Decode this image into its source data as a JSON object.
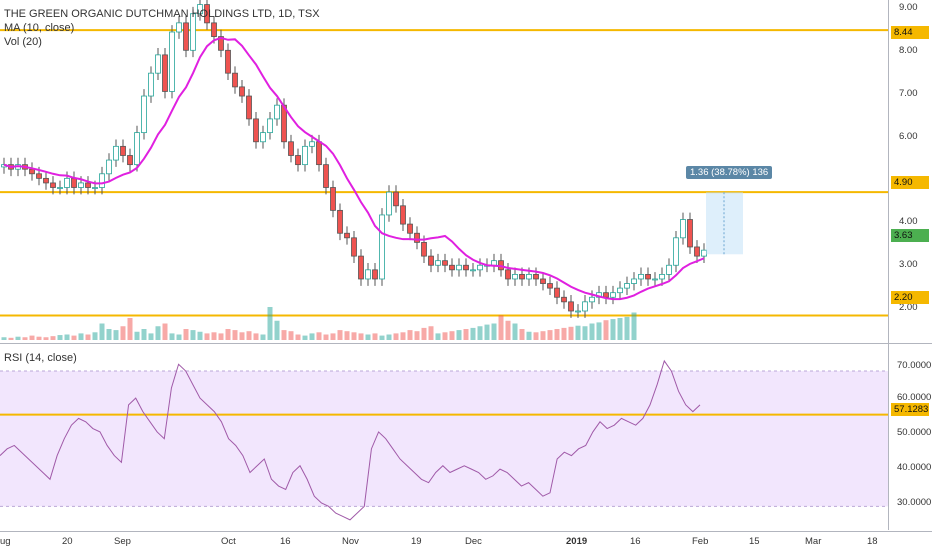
{
  "price_pane": {
    "legend": {
      "symbol": "THE GREEN ORGANIC DUTCHMAN HOLDINGS LTD, 1D, TSX",
      "ma": "MA (10, close)",
      "vol": "Vol (20)"
    },
    "scale_ticks": [
      "9.00",
      "8.00",
      "7.00",
      "6.00",
      "4.00",
      "3.00",
      "2.00"
    ],
    "levels": [
      {
        "value": "8.44",
        "color": "#f5b800"
      },
      {
        "value": "4.90",
        "color": "#f5b800"
      },
      {
        "value": "2.20",
        "color": "#f5b800"
      }
    ],
    "last_price": {
      "value": "3.63",
      "color": "#4caf50"
    },
    "measure_label": "1.36 (38.78%) 136"
  },
  "rsi_pane": {
    "legend": "RSI (14, close)",
    "scale_ticks": [
      "70.0000",
      "60.0000",
      "50.0000",
      "40.0000",
      "30.0000"
    ],
    "level": {
      "value": "57.1283",
      "color": "#f5b800"
    }
  },
  "time_axis": {
    "labels": [
      "ug",
      "20",
      "Sep",
      "Oct",
      "16",
      "Nov",
      "19",
      "Dec",
      "2019",
      "16",
      "Feb",
      "15",
      "Mar",
      "18"
    ]
  },
  "colors": {
    "up": "#26a69a",
    "down": "#ef5350",
    "ma": "#e020e0",
    "rsi_band": "#eddcfc",
    "level": "#f5b800"
  },
  "chart_data": {
    "type": "candlestick",
    "title": "THE GREEN ORGANIC DUTCHMAN HOLDINGS LTD, 1D, TSX",
    "ylim": [
      1.6,
      9.1
    ],
    "closes": [
      5.5,
      5.4,
      5.5,
      5.4,
      5.3,
      5.2,
      5.1,
      5.0,
      5.0,
      5.2,
      5.0,
      5.1,
      5.0,
      5.0,
      5.3,
      5.6,
      5.9,
      5.7,
      5.5,
      6.2,
      7.0,
      7.5,
      7.9,
      7.1,
      8.4,
      8.6,
      8.0,
      8.8,
      9.0,
      8.6,
      8.3,
      8.0,
      7.5,
      7.2,
      7.0,
      6.5,
      6.0,
      6.2,
      6.5,
      6.8,
      6.0,
      5.7,
      5.5,
      5.9,
      6.0,
      5.5,
      5.0,
      4.5,
      4.0,
      3.9,
      3.5,
      3.0,
      3.2,
      3.0,
      4.4,
      4.9,
      4.6,
      4.2,
      4.0,
      3.8,
      3.5,
      3.3,
      3.4,
      3.3,
      3.2,
      3.3,
      3.2,
      3.2,
      3.3,
      3.3,
      3.4,
      3.2,
      3.0,
      3.1,
      3.0,
      3.1,
      3.0,
      2.9,
      2.8,
      2.6,
      2.5,
      2.3,
      2.3,
      2.5,
      2.6,
      2.7,
      2.6,
      2.7,
      2.8,
      2.9,
      3.0,
      3.1,
      3.0,
      3.0,
      3.1,
      3.3,
      3.9,
      4.3,
      3.7,
      3.5,
      3.63
    ],
    "volume_scale": "relative",
    "volume_up": [
      5,
      4,
      6,
      5,
      8,
      6,
      5,
      7,
      9,
      10,
      8,
      12,
      10,
      14,
      30,
      20,
      18,
      25,
      40,
      15,
      20,
      12,
      25,
      30,
      12,
      10,
      20,
      18,
      15,
      12,
      14,
      12,
      20,
      18,
      14,
      16,
      12,
      10,
      60,
      35,
      18,
      16,
      10,
      8,
      12,
      14,
      10,
      12,
      18,
      16,
      14,
      12,
      10,
      12,
      8,
      10,
      12,
      14,
      18,
      16,
      22,
      25,
      12,
      14,
      16,
      18,
      20,
      22,
      25,
      28,
      30,
      45,
      35,
      30,
      20,
      15,
      14,
      16,
      18,
      20,
      22,
      24,
      26,
      25,
      30,
      32,
      36,
      38,
      40,
      42,
      50
    ],
    "rsi": [
      45,
      47,
      48,
      46,
      44,
      42,
      40,
      38,
      45,
      50,
      54,
      56,
      55,
      53,
      52,
      48,
      45,
      43,
      60,
      62,
      58,
      55,
      52,
      50,
      65,
      72,
      70,
      66,
      62,
      60,
      58,
      55,
      50,
      48,
      45,
      40,
      42,
      44,
      38,
      36,
      35,
      40,
      42,
      38,
      33,
      31,
      30,
      28,
      27,
      26,
      28,
      30,
      47,
      52,
      50,
      47,
      44,
      42,
      40,
      38,
      37,
      40,
      42,
      40,
      41,
      42,
      41,
      40,
      38,
      39,
      41,
      40,
      38,
      36,
      37,
      35,
      33,
      34,
      44,
      46,
      45,
      47,
      48,
      52,
      55,
      53,
      54,
      56,
      55,
      54,
      56,
      60,
      66,
      73,
      70,
      64,
      60,
      58,
      60
    ]
  }
}
